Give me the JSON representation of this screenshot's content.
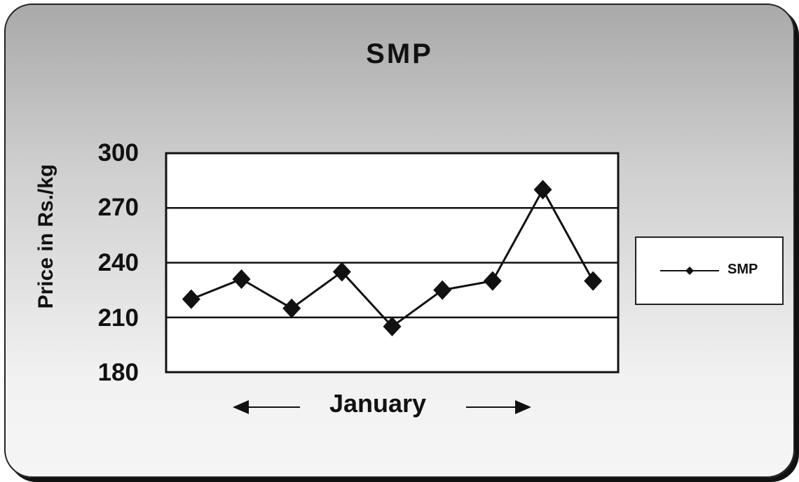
{
  "chart_data": {
    "type": "line",
    "title": "SMP",
    "xlabel": "January",
    "ylabel": "Price in Rs./kg",
    "ylim": [
      180,
      300
    ],
    "yticks": [
      "300",
      "270",
      "240",
      "210",
      "180"
    ],
    "grid": true,
    "legend_position": "right",
    "series": [
      {
        "name": "SMP",
        "values": [
          220,
          231,
          215,
          235,
          205,
          225,
          230,
          280,
          230
        ],
        "color": "#111111",
        "marker": "diamond"
      }
    ]
  }
}
